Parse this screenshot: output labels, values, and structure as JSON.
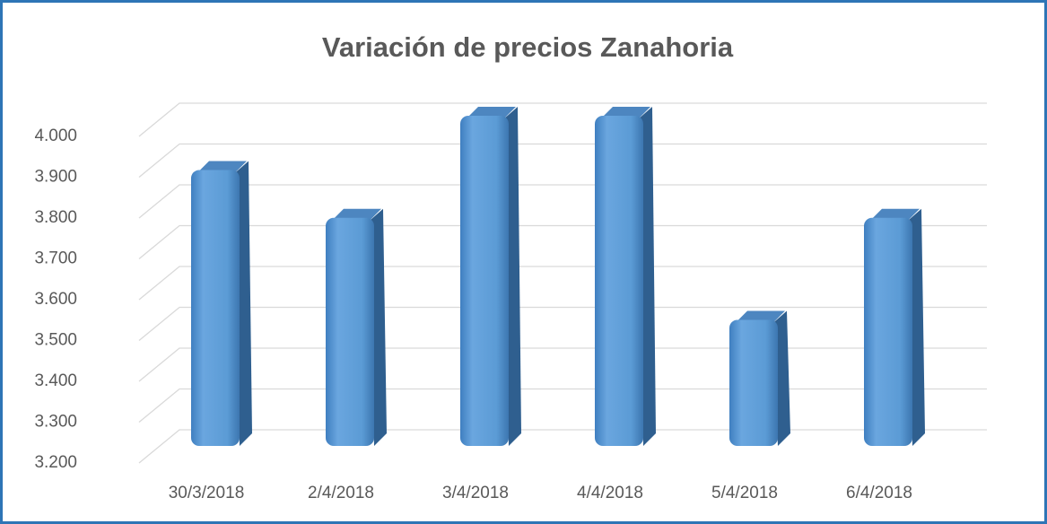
{
  "chart_data": {
    "type": "bar",
    "title": "Variación de precios  Zanahoria",
    "categories": [
      "30/3/2018",
      "2/4/2018",
      "3/4/2018",
      "4/4/2018",
      "5/4/2018",
      "6/4/2018"
    ],
    "values": [
      3.867,
      3.75,
      4.0,
      4.0,
      3.5,
      3.75
    ],
    "color": "#5b9bd5",
    "ylim": [
      3.2,
      4.0
    ],
    "yticks": [
      {
        "value": 3.2,
        "label": "3.200"
      },
      {
        "value": 3.3,
        "label": "3.300"
      },
      {
        "value": 3.4,
        "label": "3.400"
      },
      {
        "value": 3.5,
        "label": "3.500"
      },
      {
        "value": 3.6,
        "label": "3.600"
      },
      {
        "value": 3.7,
        "label": "3.700"
      },
      {
        "value": 3.8,
        "label": "3.800"
      },
      {
        "value": 3.9,
        "label": "3.900"
      },
      {
        "value": 4.0,
        "label": "4.000"
      }
    ],
    "grid": true
  }
}
